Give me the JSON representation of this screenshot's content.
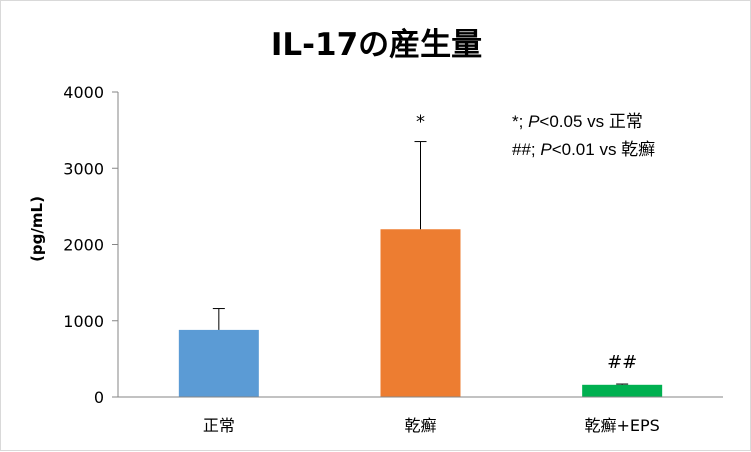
{
  "chart_data": {
    "type": "bar",
    "title": "IL-17の産生量",
    "ylabel": "(pg/mL)",
    "xlabel": "",
    "ylim": [
      0,
      4000
    ],
    "yticks": [
      0,
      1000,
      2000,
      3000,
      4000
    ],
    "categories": [
      "正常",
      "乾癬",
      "乾癬+EPS"
    ],
    "values": [
      880,
      2200,
      160
    ],
    "errors": [
      280,
      1150,
      10
    ],
    "colors": [
      "#5b9bd5",
      "#ed7d31",
      "#00b050"
    ],
    "significance": [
      "",
      "*",
      "##"
    ],
    "grid": false,
    "legend": "none",
    "annotation": {
      "line1": {
        "prefix": "*; ",
        "stat": "P",
        "rest": "<0.05 vs 正常"
      },
      "line2": {
        "prefix": "##; ",
        "stat": "P",
        "rest": "<0.01 vs 乾癬"
      }
    }
  }
}
